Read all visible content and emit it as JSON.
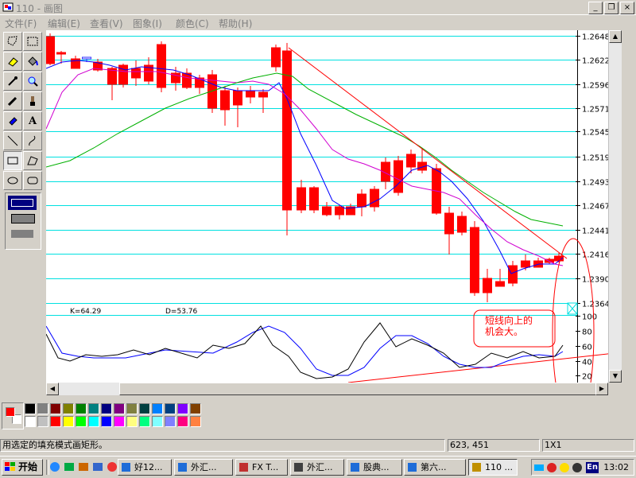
{
  "window": {
    "title": "110 - 画图",
    "min": "_",
    "restore": "❐",
    "close": "×"
  },
  "menu": [
    "文件(F)",
    "编辑(E)",
    "查看(V)",
    "图象(I)",
    "颜色(C)",
    "帮助(H)"
  ],
  "tools": [
    "free-select-icon",
    "rect-select-icon",
    "eraser-icon",
    "fill-icon",
    "eyedropper-icon",
    "magnifier-icon",
    "pencil-icon",
    "brush-icon",
    "airbrush-icon",
    "text-icon",
    "line-icon",
    "curve-icon",
    "rectangle-icon",
    "polygon-icon",
    "ellipse-icon",
    "rounded-rect-icon"
  ],
  "chart": {
    "y_ticks": [
      "1.2648",
      "1.2622",
      "1.2596",
      "1.2571",
      "1.2545",
      "1.2519",
      "1.2493",
      "1.2467",
      "1.2441",
      "1.2416",
      "1.2390",
      "1.2364"
    ],
    "osc_ticks": [
      "100",
      "80",
      "60",
      "40",
      "20"
    ],
    "k_label": "K=64.29",
    "d_label": "D=53.76",
    "annotation": "短线向上的机会大。",
    "up_color": "#0000ff",
    "down_color": "#ff0000",
    "ma_colors": [
      "#0000ff",
      "#d000d0",
      "#00b000"
    ]
  },
  "palette": [
    "#000000",
    "#808080",
    "#800000",
    "#808000",
    "#008000",
    "#008080",
    "#000080",
    "#800080",
    "#808040",
    "#004040",
    "#0080ff",
    "#004080",
    "#8000ff",
    "#804000",
    "#ffffff",
    "#c0c0c0",
    "#ff0000",
    "#ffff00",
    "#00ff00",
    "#00ffff",
    "#0000ff",
    "#ff00ff",
    "#ffff80",
    "#00ff80",
    "#80ffff",
    "#8080ff",
    "#ff0080",
    "#ff8040"
  ],
  "current_colors": {
    "foreground": "#ff0000",
    "background": "#ffffff"
  },
  "status": {
    "hint": "用选定的填充模式画矩形。",
    "coords": "623, 451",
    "size": "1X1"
  },
  "taskbar": {
    "start": "开始",
    "tasks": [
      "好12...",
      "外汇...",
      "FX T...",
      "外汇...",
      "股典...",
      "第六...",
      "110 ..."
    ],
    "clock": "13:02",
    "tray_lang": "En"
  }
}
